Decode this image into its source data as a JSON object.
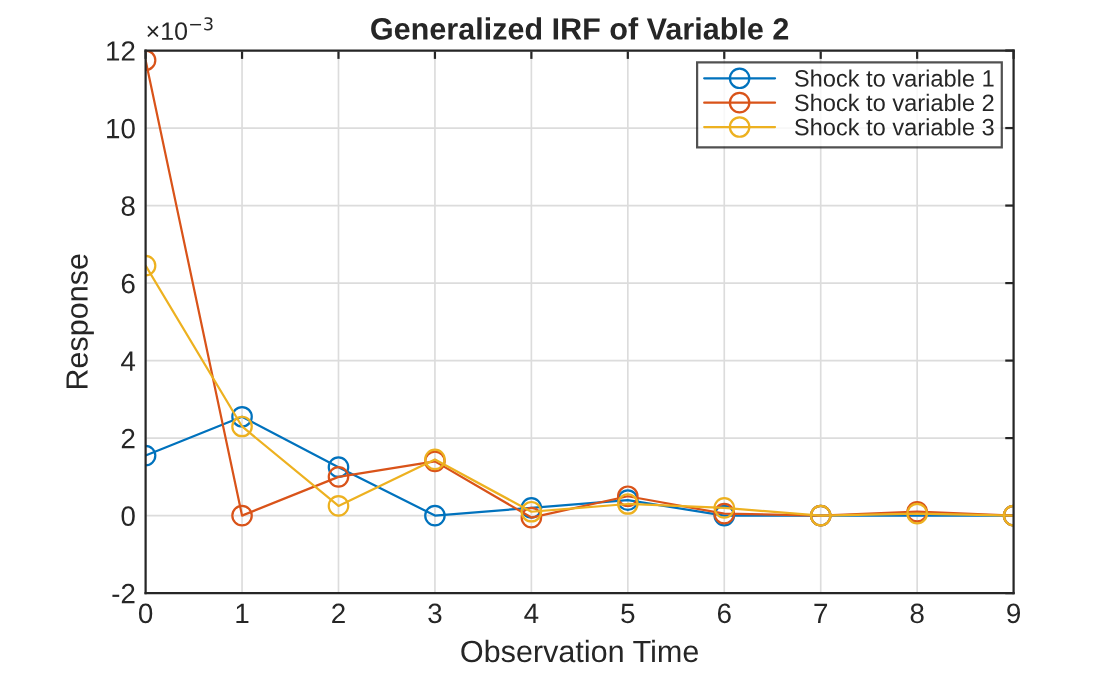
{
  "chart_data": {
    "type": "line",
    "title": "Generalized IRF of Variable 2",
    "xlabel": "Observation Time",
    "ylabel": "Response",
    "annotations": [
      "×10$^{−3}$"
    ],
    "x": [
      0,
      1,
      2,
      3,
      4,
      5,
      6,
      7,
      8,
      9
    ],
    "series": [
      {
        "name": "Shock to variable 1",
        "color": "#0072bd",
        "values": [
          1.55,
          2.55,
          1.25,
          0.0,
          0.2,
          0.4,
          0.0,
          0.0,
          null,
          0.0
        ]
      },
      {
        "name": "Shock to variable 2",
        "color": "#d95319",
        "values": [
          11.75,
          0.0,
          1.0,
          1.4,
          -0.05,
          0.5,
          0.05,
          0.0,
          0.1,
          0.0
        ]
      },
      {
        "name": "Shock to variable 3",
        "color": "#edb120",
        "values": [
          6.45,
          2.3,
          0.25,
          1.45,
          0.1,
          0.3,
          0.2,
          0.0,
          0.05,
          0.0
        ]
      }
    ],
    "xlim": [
      0,
      9
    ],
    "xticks": [
      0,
      1,
      2,
      3,
      4,
      5,
      6,
      7,
      8,
      9
    ],
    "ylim": [
      -2,
      12
    ],
    "yticks": [
      -2,
      0,
      2,
      4,
      6,
      8,
      10,
      12
    ],
    "grid": true,
    "legend": "top right",
    "marker": "circle",
    "line_style": "solid"
  }
}
